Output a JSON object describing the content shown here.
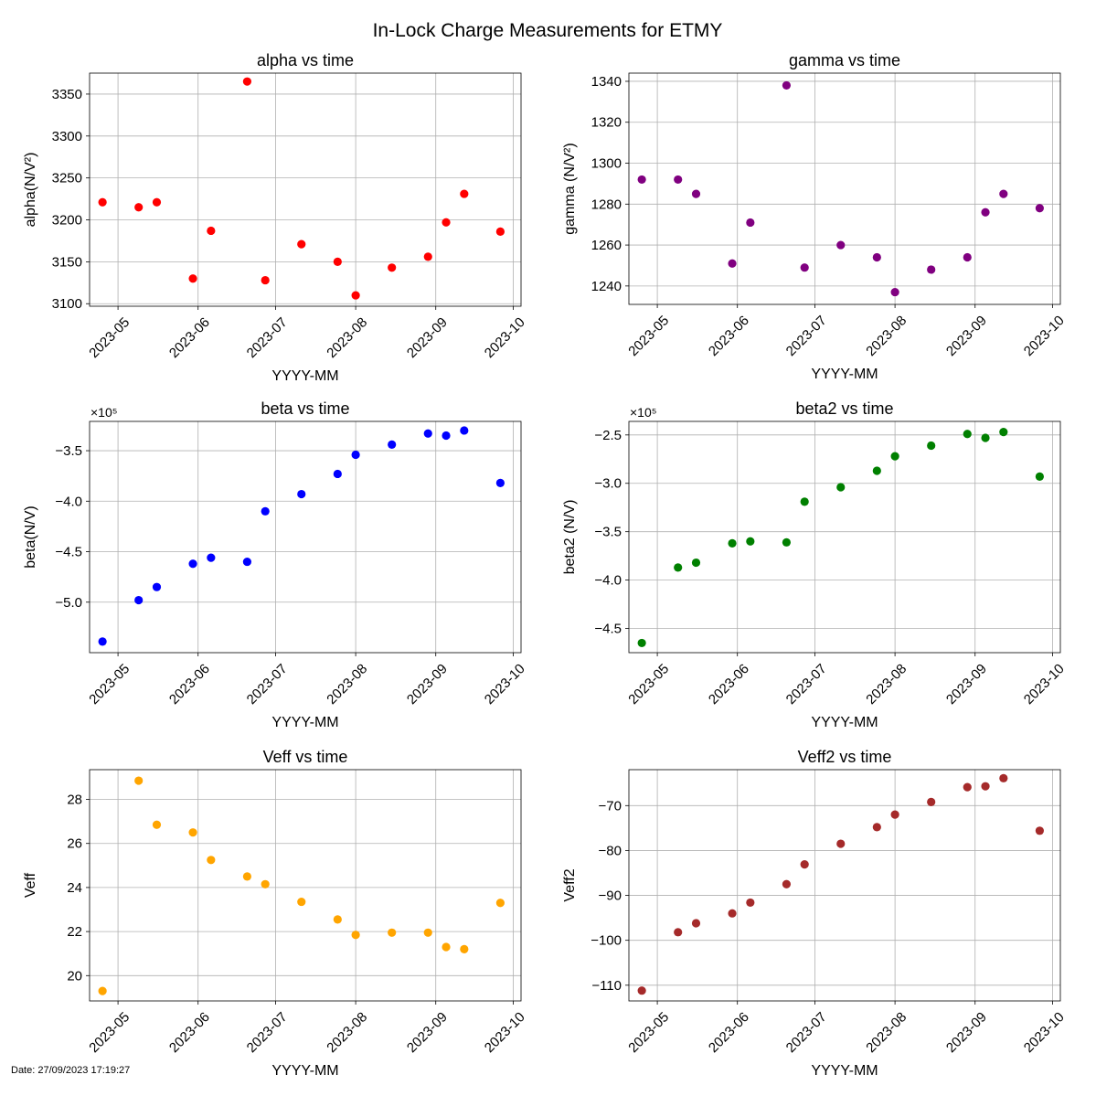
{
  "figure": {
    "title": "In-Lock Charge Measurements for ETMY",
    "footer": "Date: 27/09/2023 17:19:27"
  },
  "chart_data": [
    {
      "type": "scatter",
      "title": "alpha vs time",
      "xlabel": "YYYY-MM",
      "ylabel": "alpha(N/V²)",
      "color": "#ff0000",
      "x_ticks": [
        "2023-05",
        "2023-06",
        "2023-07",
        "2023-08",
        "2023-09",
        "2023-10"
      ],
      "y_ticks": [
        3100,
        3150,
        3200,
        3250,
        3300,
        3350
      ],
      "ylim": [
        3097,
        3375
      ],
      "offset_text": "",
      "grid": true,
      "x": [
        "2023-04-25",
        "2023-05-09",
        "2023-05-16",
        "2023-05-30",
        "2023-06-06",
        "2023-06-20",
        "2023-06-27",
        "2023-07-11",
        "2023-07-25",
        "2023-08-01",
        "2023-08-15",
        "2023-08-29",
        "2023-09-05",
        "2023-09-12",
        "2023-09-26"
      ],
      "y": [
        3221,
        3215,
        3221,
        3130,
        3187,
        3365,
        3128,
        3171,
        3150,
        3110,
        3143,
        3156,
        3197,
        3231,
        3186
      ]
    },
    {
      "type": "scatter",
      "title": "gamma vs time",
      "xlabel": "YYYY-MM",
      "ylabel": "gamma (N/V²)",
      "color": "#800080",
      "x_ticks": [
        "2023-05",
        "2023-06",
        "2023-07",
        "2023-08",
        "2023-09",
        "2023-10"
      ],
      "y_ticks": [
        1240,
        1260,
        1280,
        1300,
        1320,
        1340
      ],
      "ylim": [
        1231,
        1344
      ],
      "offset_text": "",
      "grid": true,
      "x": [
        "2023-04-25",
        "2023-05-09",
        "2023-05-16",
        "2023-05-30",
        "2023-06-06",
        "2023-06-20",
        "2023-06-27",
        "2023-07-11",
        "2023-07-25",
        "2023-08-01",
        "2023-08-15",
        "2023-08-29",
        "2023-09-05",
        "2023-09-12",
        "2023-09-26"
      ],
      "y": [
        1292,
        1292,
        1285,
        1251,
        1271,
        1338,
        1249,
        1260,
        1254,
        1237,
        1248,
        1254,
        1276,
        1285,
        1278
      ]
    },
    {
      "type": "scatter",
      "title": "beta vs time",
      "xlabel": "YYYY-MM",
      "ylabel": "beta(N/V)",
      "color": "#0000ff",
      "x_ticks": [
        "2023-05",
        "2023-06",
        "2023-07",
        "2023-08",
        "2023-09",
        "2023-10"
      ],
      "y_ticks": [
        -5.0,
        -4.5,
        -4.0,
        -3.5
      ],
      "y_tick_labels": [
        "−5.0",
        "−4.5",
        "−4.0",
        "−3.5"
      ],
      "ylim": [
        -5.5,
        -3.21
      ],
      "offset_text": "×10⁵",
      "grid": true,
      "x": [
        "2023-04-25",
        "2023-05-09",
        "2023-05-16",
        "2023-05-30",
        "2023-06-06",
        "2023-06-20",
        "2023-06-27",
        "2023-07-11",
        "2023-07-25",
        "2023-08-01",
        "2023-08-15",
        "2023-08-29",
        "2023-09-05",
        "2023-09-12",
        "2023-09-26"
      ],
      "y": [
        -5.39,
        -4.98,
        -4.85,
        -4.62,
        -4.56,
        -4.6,
        -4.1,
        -3.93,
        -3.73,
        -3.54,
        -3.44,
        -3.33,
        -3.35,
        -3.3,
        -3.82
      ]
    },
    {
      "type": "scatter",
      "title": "beta2 vs time",
      "xlabel": "YYYY-MM",
      "ylabel": "beta2 (N/V)",
      "color": "#008000",
      "x_ticks": [
        "2023-05",
        "2023-06",
        "2023-07",
        "2023-08",
        "2023-09",
        "2023-10"
      ],
      "y_ticks": [
        -4.5,
        -4.0,
        -3.5,
        -3.0,
        -2.5
      ],
      "y_tick_labels": [
        "−4.5",
        "−4.0",
        "−3.5",
        "−3.0",
        "−2.5"
      ],
      "ylim": [
        -4.75,
        -2.36
      ],
      "offset_text": "×10⁵",
      "grid": true,
      "x": [
        "2023-04-25",
        "2023-05-09",
        "2023-05-16",
        "2023-05-30",
        "2023-06-06",
        "2023-06-20",
        "2023-06-27",
        "2023-07-11",
        "2023-07-25",
        "2023-08-01",
        "2023-08-15",
        "2023-08-29",
        "2023-09-05",
        "2023-09-12",
        "2023-09-26"
      ],
      "y": [
        -4.65,
        -3.87,
        -3.82,
        -3.62,
        -3.6,
        -3.61,
        -3.19,
        -3.04,
        -2.87,
        -2.72,
        -2.61,
        -2.49,
        -2.53,
        -2.47,
        -2.93
      ]
    },
    {
      "type": "scatter",
      "title": "Veff vs time",
      "xlabel": "YYYY-MM",
      "ylabel": "Veff",
      "color": "#ffa500",
      "x_ticks": [
        "2023-05",
        "2023-06",
        "2023-07",
        "2023-08",
        "2023-09",
        "2023-10"
      ],
      "y_ticks": [
        20,
        22,
        24,
        26,
        28
      ],
      "ylim": [
        18.85,
        29.35
      ],
      "offset_text": "",
      "grid": true,
      "x": [
        "2023-04-25",
        "2023-05-09",
        "2023-05-16",
        "2023-05-30",
        "2023-06-06",
        "2023-06-20",
        "2023-06-27",
        "2023-07-11",
        "2023-07-25",
        "2023-08-01",
        "2023-08-15",
        "2023-08-29",
        "2023-09-05",
        "2023-09-12",
        "2023-09-26"
      ],
      "y": [
        19.3,
        28.85,
        26.85,
        26.5,
        25.25,
        24.5,
        24.15,
        23.35,
        22.55,
        21.85,
        21.95,
        21.95,
        21.3,
        21.2,
        23.3
      ]
    },
    {
      "type": "scatter",
      "title": "Veff2 vs time",
      "xlabel": "YYYY-MM",
      "ylabel": "Veff2",
      "color": "#a52a2a",
      "x_ticks": [
        "2023-05",
        "2023-06",
        "2023-07",
        "2023-08",
        "2023-09",
        "2023-10"
      ],
      "y_ticks": [
        -110,
        -100,
        -90,
        -80,
        -70
      ],
      "y_tick_labels": [
        "−110",
        "−100",
        "−90",
        "−80",
        "−70"
      ],
      "ylim": [
        -113.5,
        -62
      ],
      "offset_text": "",
      "grid": true,
      "x": [
        "2023-04-25",
        "2023-05-09",
        "2023-05-16",
        "2023-05-30",
        "2023-06-06",
        "2023-06-20",
        "2023-06-27",
        "2023-07-11",
        "2023-07-25",
        "2023-08-01",
        "2023-08-15",
        "2023-08-29",
        "2023-09-05",
        "2023-09-12",
        "2023-09-26"
      ],
      "y": [
        -111.2,
        -98.2,
        -96.2,
        -94.0,
        -91.6,
        -87.5,
        -83.1,
        -78.5,
        -74.8,
        -72.0,
        -69.2,
        -65.9,
        -65.7,
        -63.9,
        -75.6
      ]
    }
  ]
}
